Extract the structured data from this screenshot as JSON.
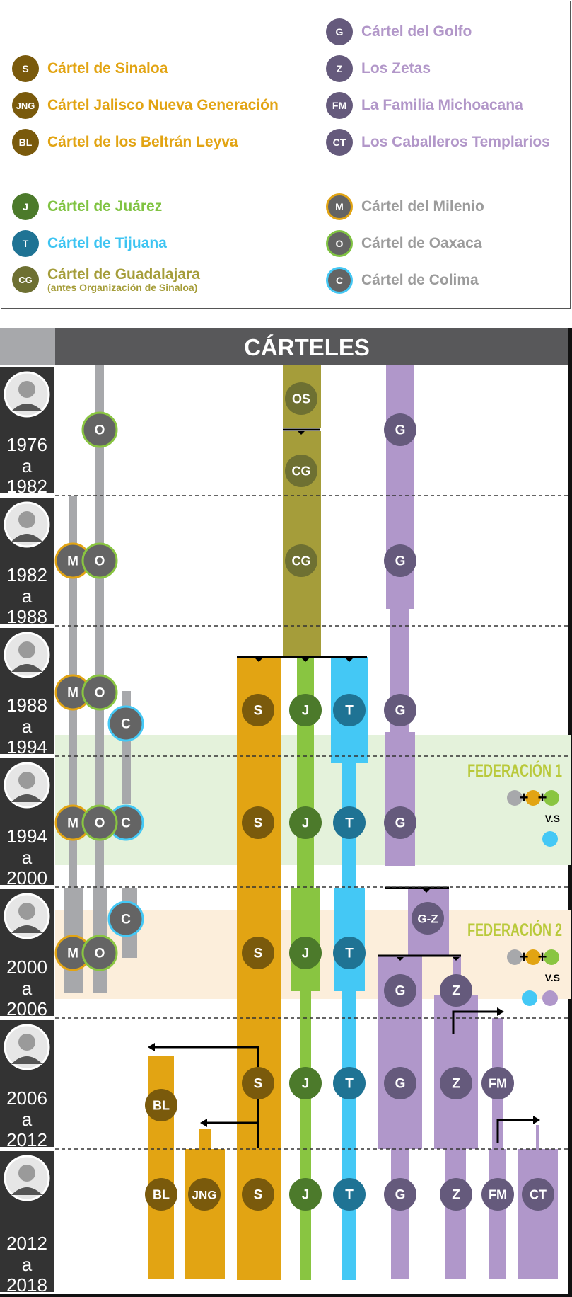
{
  "colors": {
    "sinaloa": "#E2A413",
    "sinaloa_label": "#E2A413",
    "circle_brown": "#7A5A0C",
    "golfo_label": "#B297C9",
    "golfo_bar": "#B097CA",
    "circle_purple": "#655A7C",
    "juarez_label": "#80C342",
    "juarez_bar": "#89C541",
    "circle_green": "#4C7A2B",
    "tijuana_label": "#3DC4F2",
    "tijuana_bar": "#44C8F5",
    "circle_teal": "#1F7394",
    "guadalajara_bar": "#A59D3A",
    "circle_olive": "#6E7032",
    "gray_label": "#9C9C9C",
    "gray_bar": "#A7A8AB",
    "circle_gray": "#646464",
    "federacion1_band": "#E4F2DB",
    "federacion2_band": "#FCEEDB",
    "header_bg": "#58585A",
    "period_bg": "#333333"
  },
  "legend": {
    "sinaloa": {
      "abbr": "S",
      "label": "Cártel de Sinaloa"
    },
    "cjng": {
      "abbr": "JNG",
      "label": "Cártel Jalisco Nueva Generación"
    },
    "beltran": {
      "abbr": "BL",
      "label": "Cártel de los Beltrán Leyva"
    },
    "golfo": {
      "abbr": "G",
      "label": "Cártel del Golfo"
    },
    "zetas": {
      "abbr": "Z",
      "label": "Los Zetas"
    },
    "familia": {
      "abbr": "FM",
      "label": "La Familia Michoacana"
    },
    "templarios": {
      "abbr": "CT",
      "label": "Los Caballeros Templarios"
    },
    "juarez": {
      "abbr": "J",
      "label": "Cártel de Juárez"
    },
    "tijuana": {
      "abbr": "T",
      "label": "Cártel de Tijuana"
    },
    "guadalajara": {
      "abbr": "CG",
      "label": "Cártel de Guadalajara",
      "note": "(antes Organización de Sinaloa)"
    },
    "milenio": {
      "abbr": "M",
      "label": "Cártel del Milenio"
    },
    "oaxaca": {
      "abbr": "O",
      "label": "Cártel de Oaxaca"
    },
    "colima": {
      "abbr": "C",
      "label": "Cártel de Colima"
    }
  },
  "chart": {
    "title": "CÁRTELES",
    "periods": [
      {
        "from": "1976",
        "sep": "a",
        "to": "1982"
      },
      {
        "from": "1982",
        "sep": "a",
        "to": "1988"
      },
      {
        "from": "1988",
        "sep": "a",
        "to": "1994"
      },
      {
        "from": "1994",
        "sep": "a",
        "to": "2000"
      },
      {
        "from": "2000",
        "sep": "a",
        "to": "2006"
      },
      {
        "from": "2006",
        "sep": "a",
        "to": "2012"
      },
      {
        "from": "2012",
        "sep": "a",
        "to": "2018"
      }
    ],
    "federacion1": {
      "title": "FEDERACIÓN 1",
      "vs": "V.S"
    },
    "federacion2": {
      "title": "FEDERACIÓN 2",
      "vs": "V.S"
    },
    "nodes": {
      "os": "OS",
      "cg": "CG",
      "g": "G",
      "o": "O",
      "m": "M",
      "c": "C",
      "s": "S",
      "j": "J",
      "t": "T",
      "gz": "G-Z",
      "z": "Z",
      "bl": "BL",
      "fm": "FM",
      "jng": "JNG",
      "ct": "CT"
    }
  }
}
